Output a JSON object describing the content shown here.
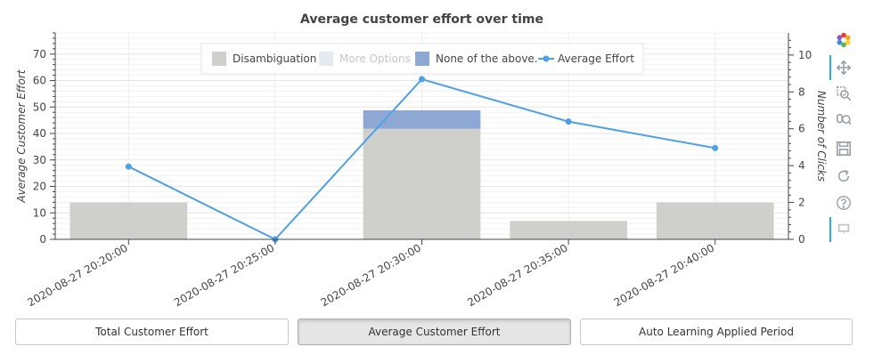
{
  "chart_data": {
    "type": "bar",
    "title": "Average customer effort over time",
    "categories": [
      "2020-08-27 20:20:00",
      "2020-08-27 20:25:00",
      "2020-08-27 20:30:00",
      "2020-08-27 20:35:00",
      "2020-08-27 20:40:00"
    ],
    "y_left": {
      "label": "Average Customer Effort",
      "range": [
        0,
        78
      ],
      "ticks": [
        0,
        10,
        20,
        30,
        40,
        50,
        60,
        70
      ]
    },
    "y_right": {
      "label": "Number of Clicks",
      "range": [
        0,
        11.2
      ],
      "ticks": [
        0,
        2,
        4,
        6,
        8,
        10
      ]
    },
    "stacked_bar_series": [
      {
        "name": "Disambiguation",
        "color": "#cfcfcc",
        "axis": "right",
        "values": [
          2,
          0,
          6,
          1,
          2
        ]
      },
      {
        "name": "More Options",
        "color": "#e7eaf1",
        "axis": "right",
        "values": [
          0,
          0,
          0,
          0,
          0
        ],
        "muted": true
      },
      {
        "name": "None of the above.",
        "color": "#8ea8d4",
        "axis": "right",
        "values": [
          0,
          0,
          1,
          0,
          0
        ]
      }
    ],
    "line_series": [
      {
        "name": "Average Effort",
        "color": "#4ea1e6",
        "axis": "left",
        "values": [
          27.5,
          0,
          60.5,
          44.5,
          34.5
        ]
      }
    ],
    "legend_position": "top-center",
    "grid": true
  },
  "toolbar": {
    "tools": [
      "bokeh-logo-icon",
      "pan-icon",
      "box-zoom-icon",
      "wheel-zoom-icon",
      "save-icon",
      "reset-icon",
      "help-icon",
      "hover-icon"
    ]
  },
  "buttons": [
    {
      "label": "Total Customer Effort",
      "active": false
    },
    {
      "label": "Average Customer Effort",
      "active": true
    },
    {
      "label": "Auto Learning Applied Period",
      "active": false
    }
  ]
}
